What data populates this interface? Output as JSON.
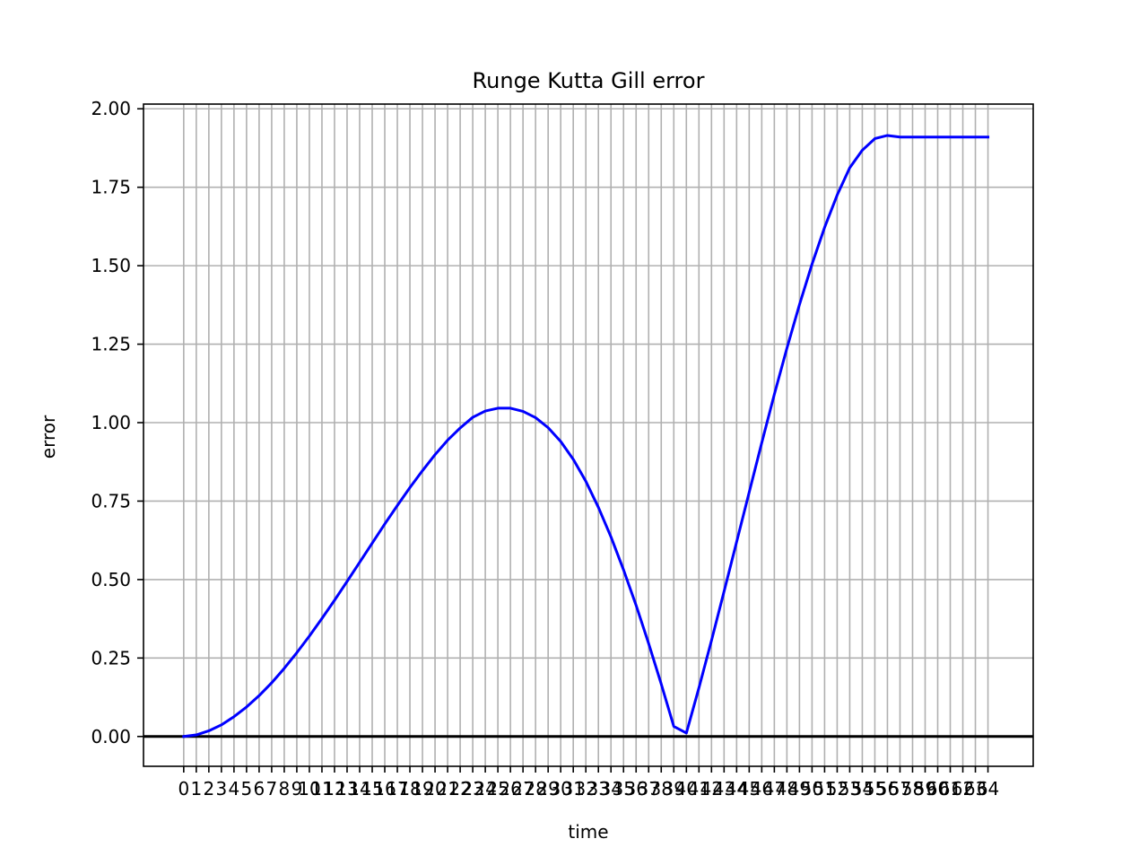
{
  "chart_data": {
    "type": "line",
    "title": "Runge Kutta Gill error",
    "xlabel": "time",
    "ylabel": "error",
    "xlim": [
      -3.2,
      67.6
    ],
    "ylim": [
      -0.095,
      2.015
    ],
    "x_ticks": [
      0,
      1,
      2,
      3,
      4,
      5,
      6,
      7,
      8,
      9,
      10,
      11,
      12,
      13,
      14,
      15,
      16,
      17,
      18,
      19,
      20,
      21,
      22,
      23,
      24,
      25,
      26,
      27,
      28,
      29,
      30,
      31,
      32,
      33,
      34,
      35,
      36,
      37,
      38,
      39,
      40,
      41,
      42,
      43,
      44,
      45,
      46,
      47,
      48,
      49,
      50,
      51,
      52,
      53,
      54,
      55,
      56,
      57,
      58,
      59,
      60,
      61,
      62,
      63,
      64
    ],
    "x_tick_labels": [
      "0",
      "1",
      "2",
      "3",
      "4",
      "5",
      "6",
      "7",
      "8",
      "9",
      "10",
      "11",
      "12",
      "13",
      "14",
      "15",
      "16",
      "17",
      "18",
      "19",
      "20",
      "21",
      "22",
      "23",
      "24",
      "25",
      "26",
      "27",
      "28",
      "29",
      "30",
      "31",
      "32",
      "33",
      "34",
      "35",
      "36",
      "37",
      "38",
      "39",
      "40",
      "41",
      "42",
      "43",
      "44",
      "45",
      "46",
      "47",
      "48",
      "49",
      "50",
      "51",
      "52",
      "53",
      "54",
      "55",
      "56",
      "57",
      "58",
      "59",
      "60",
      "61",
      "62",
      "63",
      "64"
    ],
    "y_ticks": [
      0.0,
      0.25,
      0.5,
      0.75,
      1.0,
      1.25,
      1.5,
      1.75,
      2.0
    ],
    "y_tick_labels": [
      "0.00",
      "0.25",
      "0.50",
      "0.75",
      "1.00",
      "1.25",
      "1.50",
      "1.75",
      "2.00"
    ],
    "grid": true,
    "reference_line": {
      "y": 0,
      "color": "#000000"
    },
    "series": [
      {
        "color": "#0000ff",
        "x": [
          0,
          1,
          2,
          3,
          4,
          5,
          6,
          7,
          8,
          9,
          10,
          11,
          12,
          13,
          14,
          15,
          16,
          17,
          18,
          19,
          20,
          21,
          22,
          23,
          24,
          25,
          26,
          27,
          28,
          29,
          30,
          31,
          32,
          33,
          34,
          35,
          36,
          37,
          38,
          39,
          40,
          41,
          42,
          43,
          44,
          45,
          46,
          47,
          48,
          49,
          50,
          51,
          52,
          53,
          54,
          55,
          56,
          57,
          58,
          59,
          60,
          61,
          62,
          63,
          64
        ],
        "y": [
          0.0,
          0.005,
          0.018,
          0.037,
          0.063,
          0.094,
          0.13,
          0.171,
          0.217,
          0.267,
          0.32,
          0.376,
          0.434,
          0.494,
          0.555,
          0.616,
          0.677,
          0.736,
          0.793,
          0.847,
          0.898,
          0.944,
          0.983,
          1.017,
          1.037,
          1.046,
          1.046,
          1.036,
          1.016,
          0.984,
          0.94,
          0.883,
          0.813,
          0.73,
          0.636,
          0.531,
          0.418,
          0.296,
          0.167,
          0.032,
          0.011,
          0.155,
          0.306,
          0.462,
          0.62,
          0.778,
          0.936,
          1.09,
          1.237,
          1.376,
          1.505,
          1.622,
          1.725,
          1.812,
          1.868,
          1.905,
          1.915,
          1.91,
          1.91,
          1.91,
          1.91,
          1.91,
          1.91,
          1.91,
          1.91
        ]
      }
    ]
  }
}
